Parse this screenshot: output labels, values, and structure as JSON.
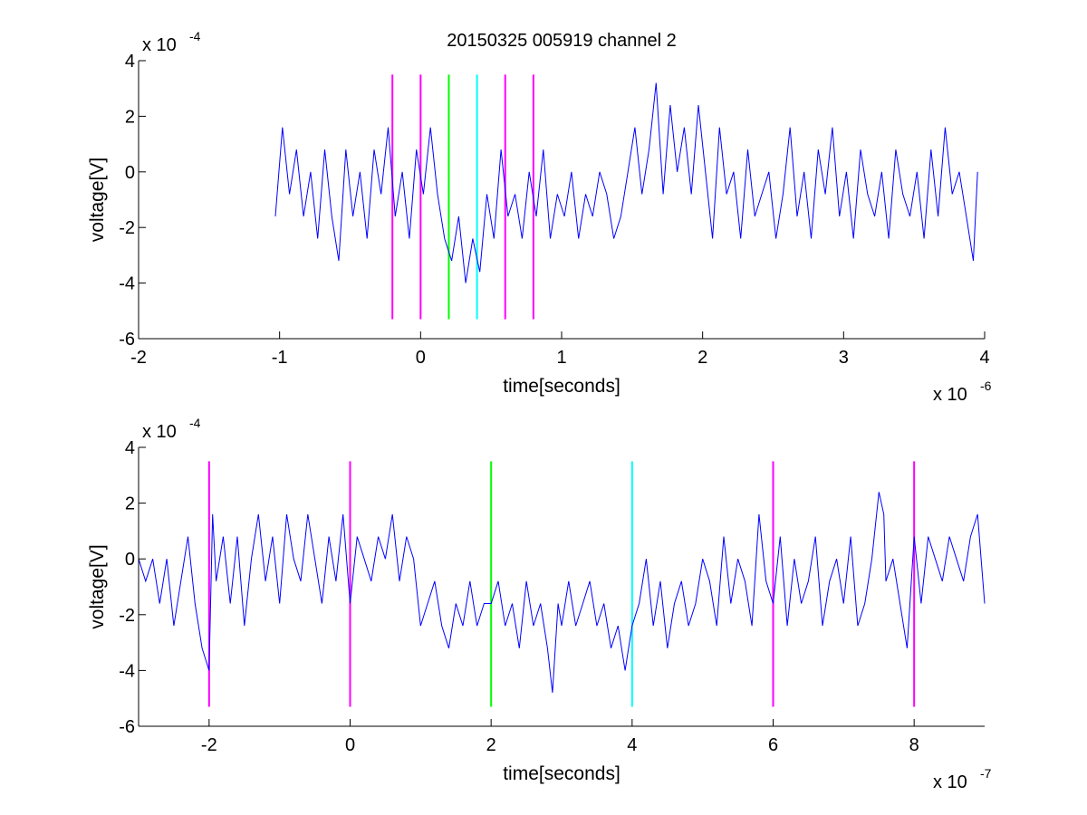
{
  "figure": {
    "title": "20150325 005919 channel 2"
  },
  "chart_data": [
    {
      "type": "line",
      "title": "20150325 005919 channel 2",
      "xlabel": "time[seconds]",
      "ylabel": "voltage[V]",
      "x_exponent_label": "x 10",
      "x_exponent": "-6",
      "y_exponent_label": "x 10",
      "y_exponent": "-4",
      "xlim": [
        -2,
        4
      ],
      "ylim": [
        -6,
        4
      ],
      "xticks": [
        -2,
        -1,
        0,
        1,
        2,
        3,
        4
      ],
      "xtick_labels": [
        "-2",
        "-1",
        "0",
        "1",
        "2",
        "3",
        "4"
      ],
      "yticks": [
        -6,
        -4,
        -2,
        0,
        2,
        4
      ],
      "ytick_labels": [
        "-6",
        "-4",
        "-2",
        "0",
        "2",
        "4"
      ],
      "grid": false,
      "series": [
        {
          "color": "#0000ff",
          "x": [
            -1.03,
            -0.98,
            -0.93,
            -0.88,
            -0.83,
            -0.78,
            -0.73,
            -0.68,
            -0.63,
            -0.58,
            -0.53,
            -0.48,
            -0.43,
            -0.38,
            -0.33,
            -0.28,
            -0.23,
            -0.18,
            -0.13,
            -0.08,
            -0.03,
            0.02,
            0.07,
            0.12,
            0.17,
            0.22,
            0.27,
            0.32,
            0.37,
            0.42,
            0.47,
            0.52,
            0.57,
            0.62,
            0.67,
            0.72,
            0.77,
            0.82,
            0.87,
            0.92,
            0.97,
            1.02,
            1.07,
            1.12,
            1.17,
            1.22,
            1.27,
            1.32,
            1.37,
            1.42,
            1.47,
            1.52,
            1.57,
            1.62,
            1.67,
            1.72,
            1.77,
            1.82,
            1.87,
            1.92,
            1.97,
            2.02,
            2.07,
            2.12,
            2.17,
            2.22,
            2.27,
            2.32,
            2.37,
            2.42,
            2.47,
            2.52,
            2.57,
            2.62,
            2.67,
            2.72,
            2.77,
            2.82,
            2.87,
            2.92,
            2.97,
            3.02,
            3.07,
            3.12,
            3.17,
            3.22,
            3.27,
            3.32,
            3.37,
            3.42,
            3.47,
            3.52,
            3.57,
            3.62,
            3.67,
            3.72,
            3.77,
            3.82,
            3.87,
            3.92,
            3.95
          ],
          "y": [
            -1.6,
            1.6,
            -0.8,
            0.8,
            -1.6,
            0.0,
            -2.4,
            0.8,
            -1.6,
            -3.2,
            0.8,
            -1.6,
            0.0,
            -2.4,
            0.8,
            -0.8,
            1.6,
            -1.6,
            0.0,
            -2.4,
            0.8,
            -0.8,
            1.6,
            -0.8,
            -2.4,
            -3.2,
            -1.6,
            -4.0,
            -2.4,
            -3.6,
            -0.8,
            -2.4,
            0.8,
            -1.6,
            -0.8,
            -2.4,
            0.0,
            -1.6,
            0.8,
            -2.4,
            -0.8,
            -1.6,
            0.0,
            -2.4,
            -0.8,
            -1.6,
            0.0,
            -0.8,
            -2.4,
            -1.6,
            0.0,
            1.6,
            -0.8,
            0.8,
            3.2,
            -0.8,
            2.4,
            0.0,
            1.6,
            -0.8,
            2.4,
            0.0,
            -2.4,
            1.6,
            -0.8,
            0.0,
            -2.4,
            0.8,
            -1.6,
            -0.8,
            0.0,
            -2.4,
            -0.8,
            1.6,
            -1.6,
            0.0,
            -2.4,
            0.8,
            -0.8,
            1.6,
            -1.6,
            0.0,
            -2.4,
            0.8,
            -0.8,
            -1.6,
            0.0,
            -2.4,
            0.8,
            -0.8,
            -1.6,
            0.0,
            -2.4,
            0.8,
            -1.6,
            1.6,
            -0.8,
            0.0,
            -1.6,
            -3.2,
            0.0
          ]
        }
      ],
      "vlines": [
        {
          "x": -0.2,
          "color": "#ff00ff",
          "ymin": -5.3,
          "ymax": 3.5
        },
        {
          "x": 0.0,
          "color": "#ff00ff",
          "ymin": -5.3,
          "ymax": 3.5
        },
        {
          "x": 0.2,
          "color": "#00ff00",
          "ymin": -5.3,
          "ymax": 3.5
        },
        {
          "x": 0.4,
          "color": "#00ffff",
          "ymin": -5.3,
          "ymax": 3.5
        },
        {
          "x": 0.6,
          "color": "#ff00ff",
          "ymin": -5.3,
          "ymax": 3.5
        },
        {
          "x": 0.8,
          "color": "#ff00ff",
          "ymin": -5.3,
          "ymax": 3.5
        }
      ]
    },
    {
      "type": "line",
      "title": "",
      "xlabel": "time[seconds]",
      "ylabel": "voltage[V]",
      "x_exponent_label": "x 10",
      "x_exponent": "-7",
      "y_exponent_label": "x 10",
      "y_exponent": "-4",
      "xlim": [
        -3,
        9
      ],
      "ylim": [
        -6,
        4
      ],
      "xticks": [
        -2,
        0,
        2,
        4,
        6,
        8
      ],
      "xtick_labels": [
        "-2",
        "0",
        "2",
        "4",
        "6",
        "8"
      ],
      "yticks": [
        -6,
        -4,
        -2,
        0,
        2,
        4
      ],
      "ytick_labels": [
        "-6",
        "-4",
        "-2",
        "0",
        "2",
        "4"
      ],
      "grid": false,
      "series": [
        {
          "color": "#0000ff",
          "x": [
            -3.0,
            -2.9,
            -2.8,
            -2.7,
            -2.6,
            -2.5,
            -2.4,
            -2.3,
            -2.2,
            -2.1,
            -2.0,
            -1.95,
            -1.9,
            -1.8,
            -1.7,
            -1.6,
            -1.5,
            -1.4,
            -1.3,
            -1.2,
            -1.1,
            -1.0,
            -0.9,
            -0.8,
            -0.7,
            -0.6,
            -0.5,
            -0.4,
            -0.3,
            -0.2,
            -0.1,
            0.0,
            0.1,
            0.2,
            0.3,
            0.4,
            0.5,
            0.6,
            0.7,
            0.8,
            0.9,
            1.0,
            1.1,
            1.2,
            1.3,
            1.4,
            1.5,
            1.6,
            1.7,
            1.8,
            1.9,
            2.0,
            2.1,
            2.2,
            2.3,
            2.4,
            2.5,
            2.6,
            2.7,
            2.8,
            2.87,
            2.95,
            3.0,
            3.1,
            3.2,
            3.3,
            3.4,
            3.5,
            3.6,
            3.7,
            3.8,
            3.9,
            3.95,
            4.0,
            4.1,
            4.2,
            4.3,
            4.4,
            4.5,
            4.6,
            4.7,
            4.8,
            4.9,
            5.0,
            5.1,
            5.2,
            5.3,
            5.4,
            5.5,
            5.6,
            5.7,
            5.8,
            5.9,
            6.0,
            6.1,
            6.2,
            6.3,
            6.4,
            6.5,
            6.6,
            6.7,
            6.8,
            6.9,
            7.0,
            7.1,
            7.2,
            7.3,
            7.4,
            7.5,
            7.57,
            7.6,
            7.7,
            7.8,
            7.9,
            8.0,
            8.1,
            8.2,
            8.3,
            8.4,
            8.5,
            8.6,
            8.7,
            8.8,
            8.9,
            9.0
          ],
          "y": [
            0.0,
            -0.8,
            0.0,
            -1.6,
            0.0,
            -2.4,
            -0.8,
            0.8,
            -1.6,
            -3.2,
            -4.0,
            1.6,
            -0.8,
            0.8,
            -1.6,
            0.8,
            -2.4,
            0.0,
            1.6,
            -0.8,
            0.8,
            -1.6,
            1.6,
            0.0,
            -0.8,
            1.6,
            0.0,
            -1.6,
            0.8,
            -0.8,
            1.6,
            -1.6,
            0.8,
            0.0,
            -0.8,
            0.8,
            0.0,
            1.6,
            -0.8,
            0.8,
            0.0,
            -2.4,
            -1.6,
            -0.8,
            -2.4,
            -3.2,
            -1.6,
            -2.4,
            -0.8,
            -2.4,
            -1.6,
            -1.6,
            -0.8,
            -2.4,
            -1.6,
            -3.2,
            -0.8,
            -2.4,
            -1.6,
            -3.2,
            -4.8,
            -1.6,
            -2.4,
            -0.8,
            -2.4,
            -1.6,
            -0.8,
            -2.4,
            -1.6,
            -3.2,
            -2.4,
            -4.0,
            -3.2,
            -2.4,
            -1.6,
            0.0,
            -2.4,
            -0.8,
            -3.2,
            -1.6,
            -0.8,
            -2.4,
            -1.6,
            0.0,
            -0.8,
            -2.4,
            0.8,
            -1.6,
            0.0,
            -0.8,
            -2.4,
            1.6,
            -0.8,
            -1.6,
            0.8,
            -2.4,
            0.0,
            -1.6,
            -0.8,
            0.8,
            -2.4,
            -0.8,
            0.0,
            -1.6,
            0.8,
            -2.4,
            -1.6,
            0.0,
            2.4,
            1.6,
            -0.8,
            0.0,
            -1.6,
            -3.2,
            0.8,
            -1.6,
            0.8,
            0.0,
            -0.8,
            0.8,
            0.0,
            -0.8,
            0.8,
            1.6,
            -1.6
          ]
        }
      ],
      "vlines": [
        {
          "x": -2.0,
          "color": "#ff00ff",
          "ymin": -5.3,
          "ymax": 3.5
        },
        {
          "x": 0.0,
          "color": "#ff00ff",
          "ymin": -5.3,
          "ymax": 3.5
        },
        {
          "x": 2.0,
          "color": "#00ff00",
          "ymin": -5.3,
          "ymax": 3.5
        },
        {
          "x": 4.0,
          "color": "#00ffff",
          "ymin": -5.3,
          "ymax": 3.5
        },
        {
          "x": 6.0,
          "color": "#ff00ff",
          "ymin": -5.3,
          "ymax": 3.5
        },
        {
          "x": 8.0,
          "color": "#ff00ff",
          "ymin": -5.3,
          "ymax": 3.5
        }
      ]
    }
  ]
}
